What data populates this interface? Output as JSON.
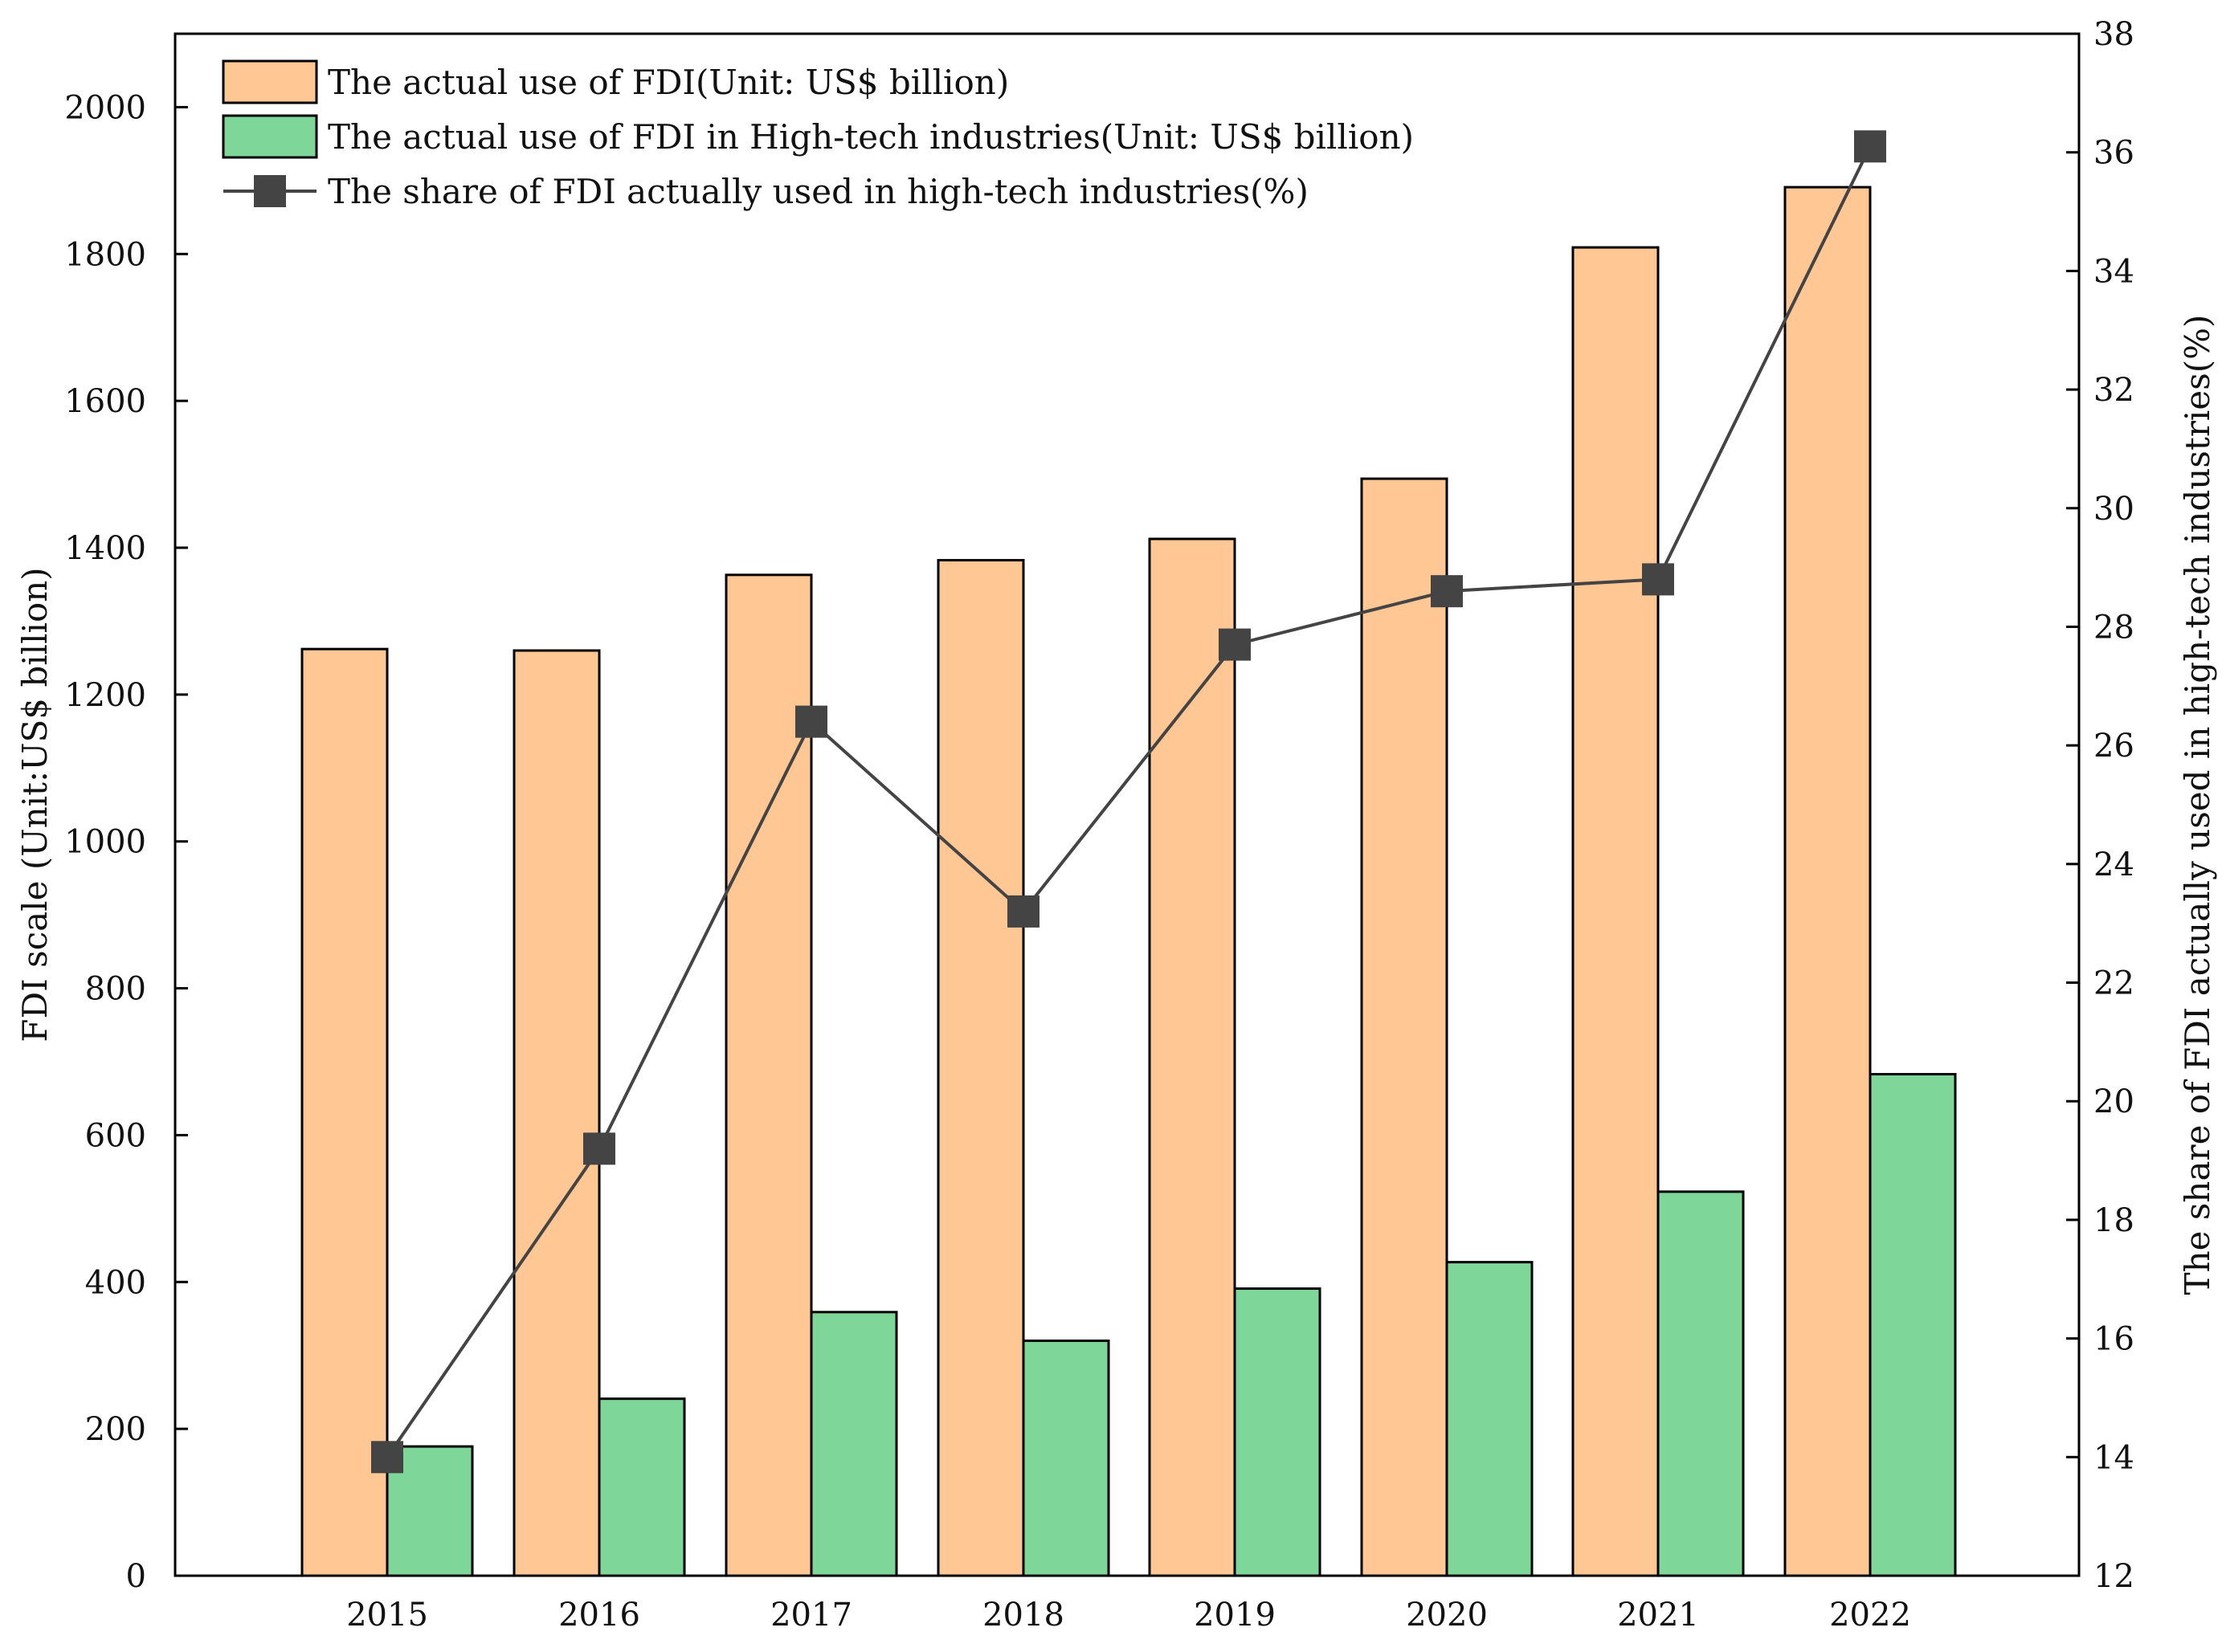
{
  "chart_data": {
    "type": "bar",
    "categories": [
      "2015",
      "2016",
      "2017",
      "2018",
      "2019",
      "2020",
      "2021",
      "2022"
    ],
    "series": [
      {
        "name": "The actual use of  FDI(Unit: US$ billion)",
        "type": "bar",
        "axis": "left",
        "color": "#FEC794",
        "values": [
          1262,
          1260,
          1363,
          1383,
          1412,
          1494,
          1809,
          1891
        ]
      },
      {
        "name": "The actual use of  FDI in High-tech industries(Unit: US$ billion)",
        "type": "bar",
        "axis": "left",
        "color": "#7FD699",
        "values": [
          176,
          241,
          359,
          320,
          391,
          427,
          523,
          683
        ]
      },
      {
        "name": "The share of FDI actually used in high-tech industries(%)",
        "type": "line",
        "axis": "right",
        "color": "#444444",
        "marker": "square",
        "values": [
          14.0,
          19.2,
          26.4,
          23.2,
          27.7,
          28.6,
          28.8,
          36.1
        ]
      }
    ],
    "ylabel": "FDI scale (Unit:US$ billion)",
    "y2label": "The share of FDI actually used in high-tech industries(%)",
    "ylim": [
      0,
      2100
    ],
    "yticks": [
      0,
      200,
      400,
      600,
      800,
      1000,
      1200,
      1400,
      1600,
      1800,
      2000
    ],
    "y2lim": [
      12,
      38
    ],
    "y2ticks": [
      12,
      14,
      16,
      18,
      20,
      22,
      24,
      26,
      28,
      30,
      32,
      34,
      36,
      38
    ],
    "grid": false,
    "legend_position": "top-left"
  }
}
